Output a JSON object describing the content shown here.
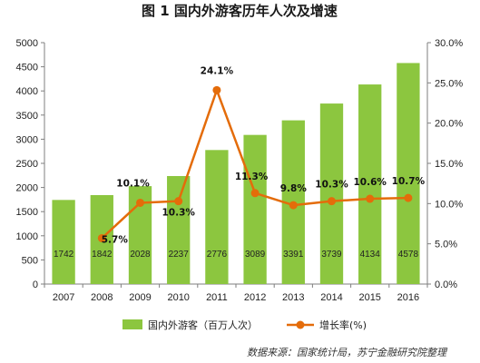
{
  "chart_data": {
    "type": "bar",
    "title": "图 1  国内外游客历年人次及增速",
    "categories": [
      "2007",
      "2008",
      "2009",
      "2010",
      "2011",
      "2012",
      "2013",
      "2014",
      "2015",
      "2016"
    ],
    "series": [
      {
        "name": "国内外游客（百万人次）",
        "type": "bar",
        "axis": "left",
        "color": "#8cc63f",
        "values": [
          1742,
          1842,
          2028,
          2237,
          2776,
          3089,
          3391,
          3739,
          4134,
          4578
        ],
        "labels": [
          "1742",
          "1842",
          "2028",
          "2237",
          "2776",
          "3089",
          "3391",
          "3739",
          "4134",
          "4578"
        ]
      },
      {
        "name": "增长率(%)",
        "type": "line",
        "axis": "right",
        "color": "#e46c0a",
        "values": [
          null,
          5.7,
          10.1,
          10.3,
          24.1,
          11.3,
          9.8,
          10.3,
          10.6,
          10.7
        ],
        "labels": [
          null,
          "5.7%",
          "10.1%",
          "10.3%",
          "24.1%",
          "11.3%",
          "9.8%",
          "10.3%",
          "10.6%",
          "10.7%"
        ]
      }
    ],
    "left_axis": {
      "ylim": [
        0,
        5000
      ],
      "ticks": [
        0,
        500,
        1000,
        1500,
        2000,
        2500,
        3000,
        3500,
        4000,
        4500,
        5000
      ],
      "tick_labels": [
        "0",
        "500",
        "1000",
        "1500",
        "2000",
        "2500",
        "3000",
        "3500",
        "4000",
        "4500",
        "5000"
      ]
    },
    "right_axis": {
      "ylim": [
        0,
        30
      ],
      "ticks": [
        0,
        5,
        10,
        15,
        20,
        25,
        30
      ],
      "tick_labels": [
        "0.0%",
        "5.0%",
        "10.0%",
        "15.0%",
        "20.0%",
        "25.0%",
        "30.0%"
      ]
    },
    "grid": false,
    "legend": "bottom",
    "source": "数据来源：国家统计局，苏宁金融研究院整理"
  }
}
